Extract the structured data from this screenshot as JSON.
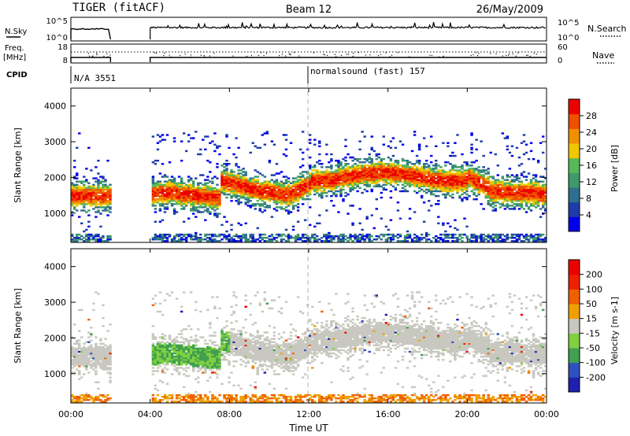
{
  "header": {
    "station": "TIGER (fitACF)",
    "beam": "Beam 12",
    "date": "26/May/2009"
  },
  "side_labels": {
    "nsky": "N.Sky",
    "freq_line1": "Freq.",
    "freq_line2": "[MHz]",
    "cpid": "CPID",
    "nsearch": "N.Search",
    "nave": "Nave"
  },
  "cpid_labels": [
    {
      "text": "N/A 3551",
      "start": 0
    },
    {
      "text": "normalsound (fast) 157",
      "start": 12
    }
  ],
  "xaxis": {
    "label": "Time UT",
    "ticks": [
      "00:00",
      "04:00",
      "08:00",
      "12:00",
      "16:00",
      "20:00",
      "00:00"
    ],
    "range_hours": [
      0,
      24
    ]
  },
  "chart_data": [
    {
      "type": "line",
      "name": "sky-noise",
      "ylim_labels": [
        "10^0",
        "10^5"
      ],
      "right_labels": [
        "10^0",
        "10^5"
      ],
      "data_gap_hours": [
        2,
        4
      ],
      "note_values": "noise levels shown as a step line between 10^0 and 10^5"
    },
    {
      "type": "line",
      "name": "frequency",
      "left_ticks": [
        "8",
        "18"
      ],
      "right_ticks": [
        "0",
        "60"
      ],
      "data_gap_hours": [
        2,
        4
      ]
    },
    {
      "type": "heatmap",
      "name": "power",
      "ylabel": "Slant Range [km]",
      "yticks": [
        1000,
        2000,
        3000,
        4000
      ],
      "ylim": [
        180,
        4500
      ],
      "colorbar": {
        "label": "Power [dB]",
        "ticks": [
          4,
          8,
          12,
          16,
          20,
          24,
          28
        ],
        "colors": [
          "#0000ee",
          "#1e3ca8",
          "#2e6e8e",
          "#3e9a68",
          "#58b858",
          "#f0c800",
          "#f09000",
          "#ee5000",
          "#ee0000"
        ]
      },
      "features": [
        {
          "t0": 0.0,
          "t1": 2.0,
          "r0": 1250,
          "r1": 1700,
          "level": "high"
        },
        {
          "t0": 4.0,
          "t1": 7.5,
          "r0": 1300,
          "r1": 1900,
          "level": "high"
        },
        {
          "t0": 9.0,
          "t1": 12.0,
          "r0": 1300,
          "r1": 1700,
          "level": "mid"
        },
        {
          "t0": 12.0,
          "t1": 20.0,
          "r0": 1800,
          "r1": 2300,
          "level": "mid"
        },
        {
          "t0": 20.0,
          "t1": 24.0,
          "r0": 1300,
          "r1": 1800,
          "level": "high"
        }
      ]
    },
    {
      "type": "heatmap",
      "name": "velocity",
      "ylabel": "Slant Range [km]",
      "yticks": [
        1000,
        2000,
        3000,
        4000
      ],
      "ylim": [
        180,
        4500
      ],
      "colorbar": {
        "label": "Velocity [m s-1]",
        "ticks": [
          200,
          100,
          50,
          15,
          -15,
          -50,
          -100,
          -200
        ],
        "colors": [
          "#2020b0",
          "#3050c0",
          "#40a050",
          "#80d040",
          "#c8c8c0",
          "#f0a000",
          "#f06000",
          "#ee2000",
          "#ee0000"
        ]
      }
    }
  ]
}
